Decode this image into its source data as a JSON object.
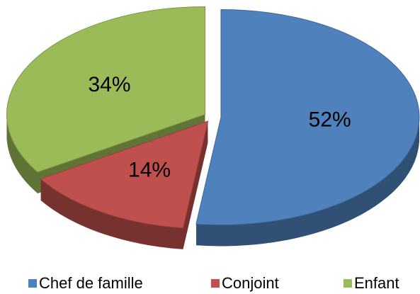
{
  "chart_data": {
    "type": "pie",
    "categories": [
      "Chef de famille",
      "Conjoint",
      "Enfant"
    ],
    "values": [
      52,
      14,
      34
    ],
    "value_labels": [
      "52%",
      "14%",
      "34%"
    ],
    "colors": [
      "#4f81bd",
      "#c0504d",
      "#9bbb59"
    ],
    "legend": "bottom"
  }
}
